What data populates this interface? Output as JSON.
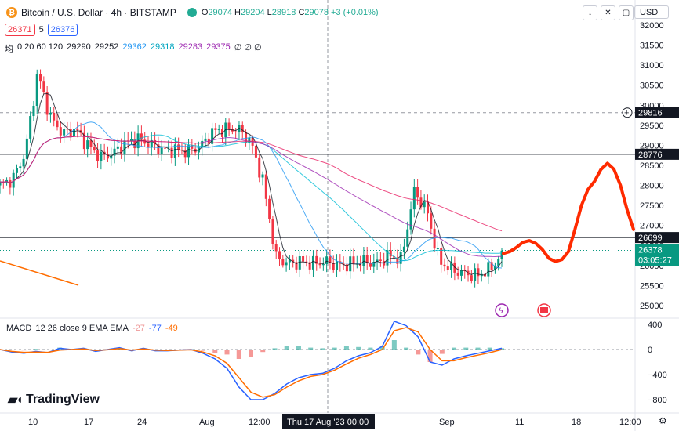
{
  "header": {
    "symbol_icon": "₿",
    "title": "Bitcoin / U.S. Dollar · 4h · BITSTAMP",
    "open_label": "O",
    "open": "29074",
    "high_label": "H",
    "high": "29204",
    "low_label": "L",
    "low": "28918",
    "close_label": "C",
    "close": "29078",
    "change": "+3 (+0.01%)",
    "bid": "26371",
    "spread": "5",
    "ask": "26376",
    "currency": "USD",
    "controls": [
      "↓",
      "✕",
      "▢"
    ]
  },
  "ma_legend": {
    "label": "均",
    "periods": "0 20 60 120",
    "values": [
      "29290",
      "29252",
      "29362",
      "29318",
      "29283",
      "29375"
    ],
    "hidden": "∅ ∅ ∅",
    "colors": [
      "#131722",
      "#131722",
      "#2196f3",
      "#00bcd4",
      "#9c27b0",
      "#e91e63"
    ]
  },
  "chart_data": {
    "type": "candlestick",
    "price_axis": {
      "range": [
        24900,
        32200
      ],
      "ticks": [
        "32000",
        "31500",
        "31000",
        "30500",
        "30000",
        "29500",
        "29000",
        "28500",
        "28000",
        "27500",
        "27000",
        "26500",
        "26000",
        "25500",
        "25000"
      ]
    },
    "time_axis": {
      "ticks": [
        "10",
        "17",
        "24",
        "Aug",
        "12:00",
        "Thu 17 Aug '23  00:00",
        "Sep",
        "11",
        "18",
        "12:00"
      ]
    },
    "close_path": [
      28000,
      28150,
      28800,
      30800,
      29700,
      29300,
      29400,
      29000,
      28700,
      28800,
      29050,
      29150,
      29020,
      28880,
      28880,
      28850,
      28980,
      29350,
      29400,
      29400,
      29080,
      28050,
      26200,
      26050,
      26100,
      26050,
      26100,
      26000,
      26050,
      26100,
      26050,
      26250,
      26150,
      27850,
      27400,
      26100,
      25900,
      25800,
      25750,
      25900,
      26250
    ],
    "horizontal_lines": [
      {
        "value": "29816",
        "style": "dashed"
      },
      {
        "value": "28776",
        "style": "solid"
      },
      {
        "value": "26699",
        "style": "solid"
      }
    ],
    "current_price": {
      "value": "26378",
      "countdown": "03:05:27"
    },
    "drawing": {
      "type": "freehand",
      "color": "#ff2a00",
      "values": [
        26300,
        26350,
        26450,
        26580,
        26620,
        26550,
        26400,
        26180,
        26100,
        26150,
        26350,
        26900,
        27500,
        27900,
        28100,
        28400,
        28550,
        28400,
        28000,
        27400,
        26900
      ]
    }
  },
  "macd": {
    "label": "MACD",
    "params": "12 26 close 9 EMA EMA",
    "values": [
      "-27",
      "-77",
      "-49"
    ],
    "axis_ticks": [
      "400",
      "0",
      "−400",
      "−800"
    ],
    "macd_line": [
      0,
      -40,
      -60,
      -30,
      -50,
      20,
      0,
      20,
      -30,
      0,
      30,
      -20,
      20,
      -20,
      -20,
      -10,
      0,
      -60,
      -150,
      -300,
      -600,
      -800,
      -800,
      -700,
      -550,
      -450,
      -400,
      -380,
      -300,
      -180,
      -100,
      -50,
      50,
      450,
      380,
      200,
      -200,
      -250,
      -150,
      -100,
      -60,
      -20,
      20
    ],
    "signal_line": [
      0,
      -30,
      -45,
      -40,
      -45,
      -10,
      0,
      10,
      -15,
      -5,
      15,
      -10,
      10,
      -10,
      -15,
      -10,
      -5,
      -40,
      -100,
      -220,
      -450,
      -680,
      -760,
      -720,
      -600,
      -500,
      -430,
      -400,
      -330,
      -230,
      -140,
      -80,
      0,
      300,
      350,
      280,
      0,
      -180,
      -180,
      -130,
      -90,
      -50,
      0
    ],
    "colors": {
      "macd": "#2962ff",
      "signal": "#ff6d00",
      "hist_up": "#26a69a",
      "hist_down": "#ef5350"
    }
  },
  "branding": {
    "logo": "TradingView",
    "timezone_icon": "⚙"
  },
  "colors": {
    "up": "#089981",
    "down": "#f23645",
    "accent": "#2962ff"
  }
}
